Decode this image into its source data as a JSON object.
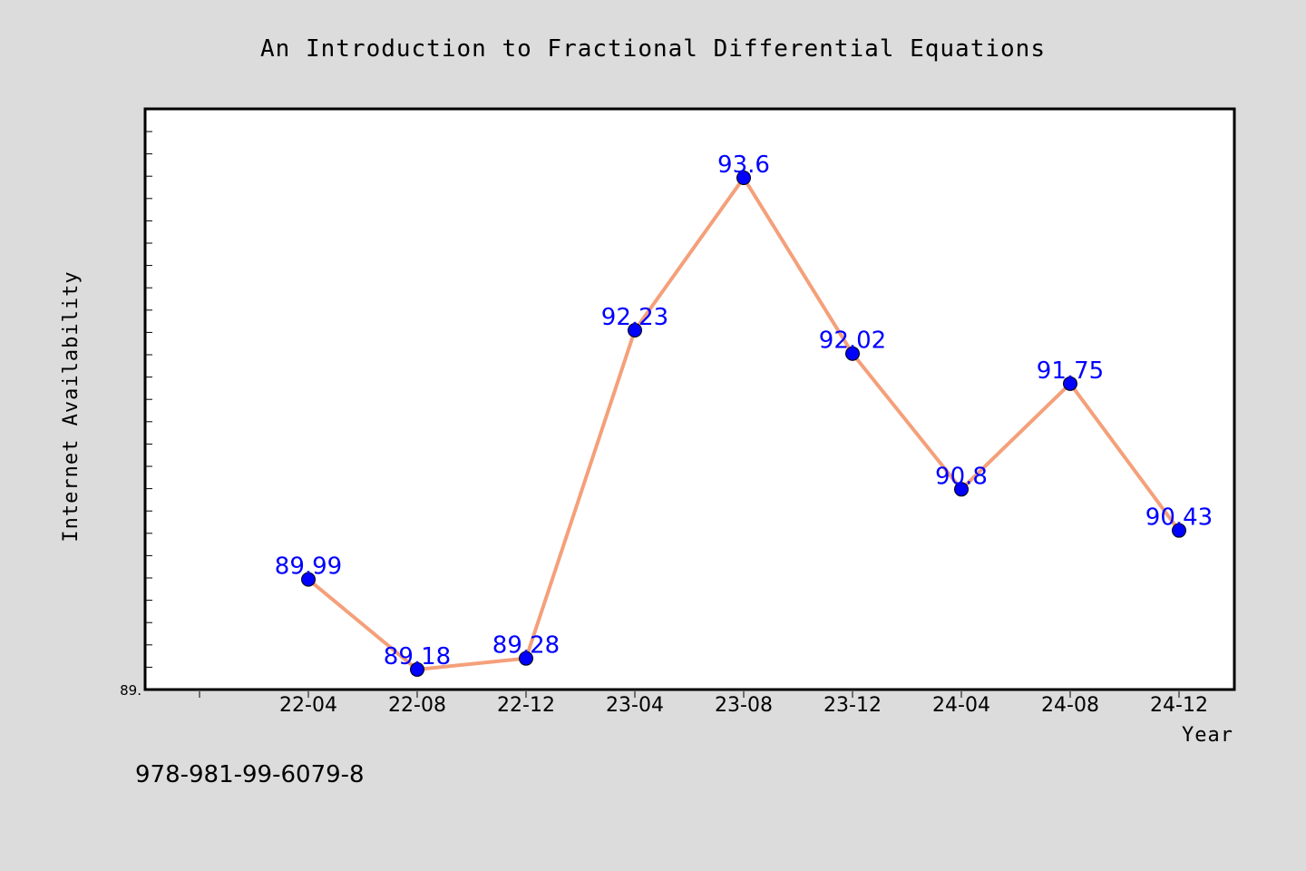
{
  "chart_data": {
    "type": "line",
    "title": "An Introduction to Fractional Differential Equations",
    "xlabel": "Year",
    "ylabel": "Internet Availability",
    "categories": [
      "22-04",
      "22-08",
      "22-12",
      "23-04",
      "23-08",
      "23-12",
      "24-04",
      "24-08",
      "24-12"
    ],
    "series": [
      {
        "values": [
          89.99,
          89.18,
          89.28,
          92.23,
          93.6,
          92.02,
          90.8,
          91.75,
          90.43
        ]
      }
    ],
    "data_labels": [
      "89.99",
      "89.18",
      "89.28",
      "92.23",
      "93.6",
      "92.02",
      "90.8",
      "91.75",
      "90.43"
    ],
    "ymin_label": "89.",
    "ylim": [
      89.0,
      94.22
    ],
    "grid": false,
    "line_color": "#f4a07a",
    "marker_color": "#0000ff",
    "label_color": "#0000ff"
  },
  "footnote": "978-981-99-6079-8"
}
